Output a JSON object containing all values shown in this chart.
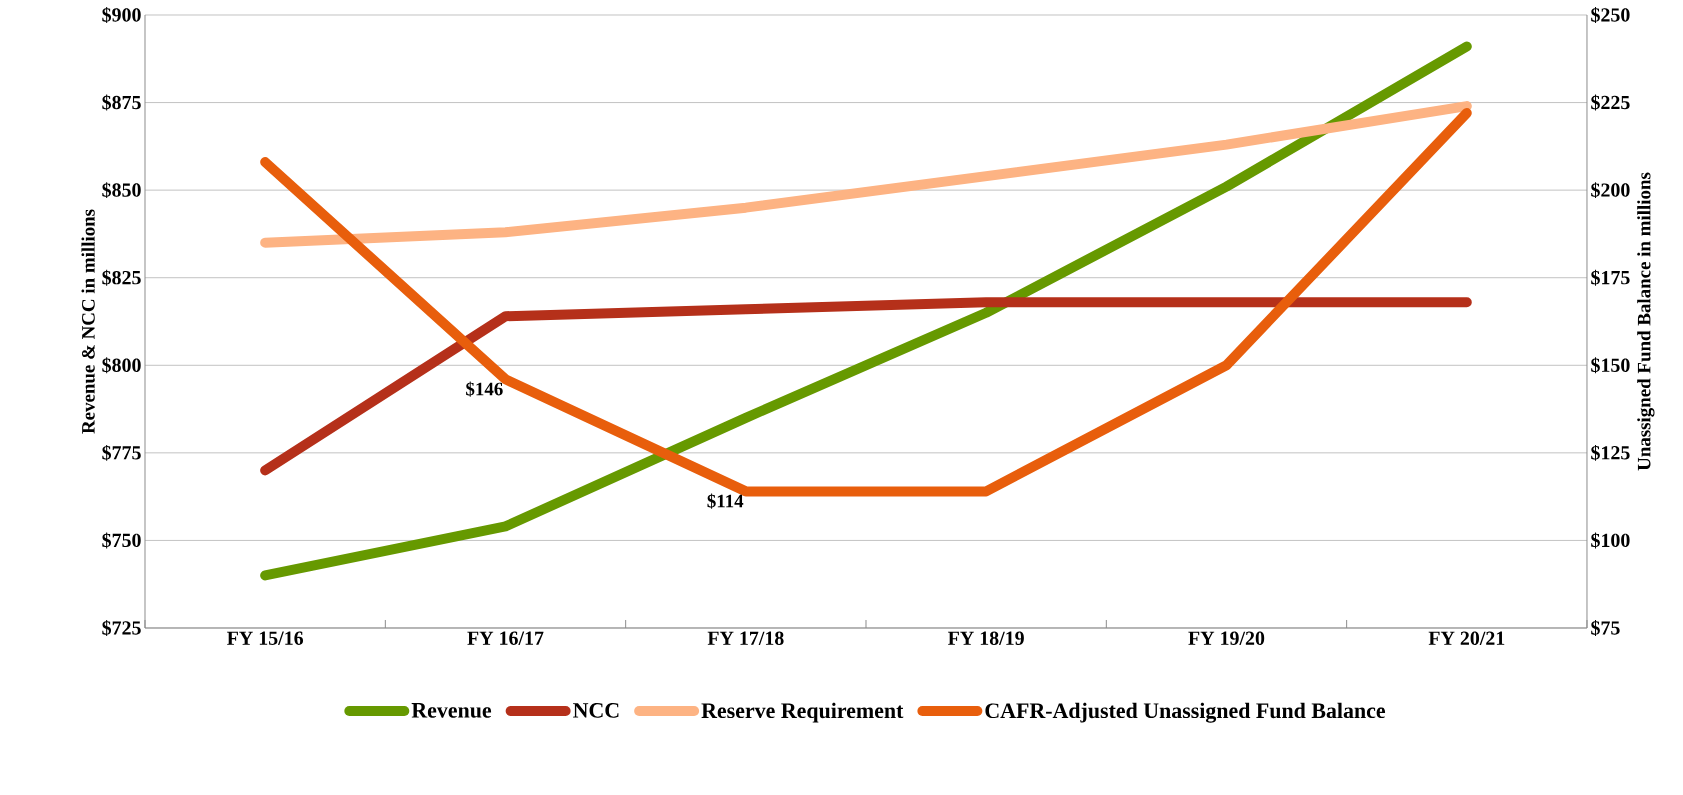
{
  "chart_data": {
    "type": "line",
    "ylabel": "Revenue & NCC in millions",
    "y2label": "Unassigned Fund Balance in millions",
    "categories": [
      "FY 15/16",
      "FY 16/17",
      "FY 17/18",
      "FY 18/19",
      "FY 19/20",
      "FY 20/21"
    ],
    "series": [
      {
        "name": "Revenue",
        "color": "#669900",
        "values": [
          740,
          754,
          785,
          815,
          851,
          891
        ]
      },
      {
        "name": "NCC",
        "color": "#b5301a",
        "values": [
          770,
          814,
          816,
          818,
          818,
          818
        ]
      },
      {
        "name": "Reserve Requirement",
        "color": "#fdb383",
        "axis": "y2",
        "values": [
          185,
          188,
          195,
          204,
          213,
          224
        ]
      },
      {
        "name": "CAFR-Adjusted Unassigned Fund Balance",
        "color": "#e85e0c",
        "axis": "y2",
        "values": [
          208,
          146,
          114,
          114,
          150,
          222
        ],
        "value_labels": [
          null,
          "$146",
          "$114",
          null,
          null,
          null
        ]
      }
    ],
    "ylim": [
      725,
      900
    ],
    "yticks": [
      {
        "value": 725,
        "label": "$725"
      },
      {
        "value": 750,
        "label": "$750"
      },
      {
        "value": 775,
        "label": "$775"
      },
      {
        "value": 800,
        "label": "$800"
      },
      {
        "value": 825,
        "label": "$825"
      },
      {
        "value": 850,
        "label": "$850"
      },
      {
        "value": 875,
        "label": "$875"
      },
      {
        "value": 900,
        "label": "$900"
      }
    ],
    "y2lim": [
      75,
      250
    ],
    "y2ticks": [
      {
        "value": 75,
        "label": "$75"
      },
      {
        "value": 100,
        "label": "$100"
      },
      {
        "value": 125,
        "label": "$125"
      },
      {
        "value": 150,
        "label": "$150"
      },
      {
        "value": 175,
        "label": "$175"
      },
      {
        "value": 200,
        "label": "$200"
      },
      {
        "value": 225,
        "label": "$225"
      },
      {
        "value": 250,
        "label": "$250"
      }
    ],
    "grid": "y",
    "legend": "bottom",
    "marker": "none",
    "line_style": "solid"
  }
}
